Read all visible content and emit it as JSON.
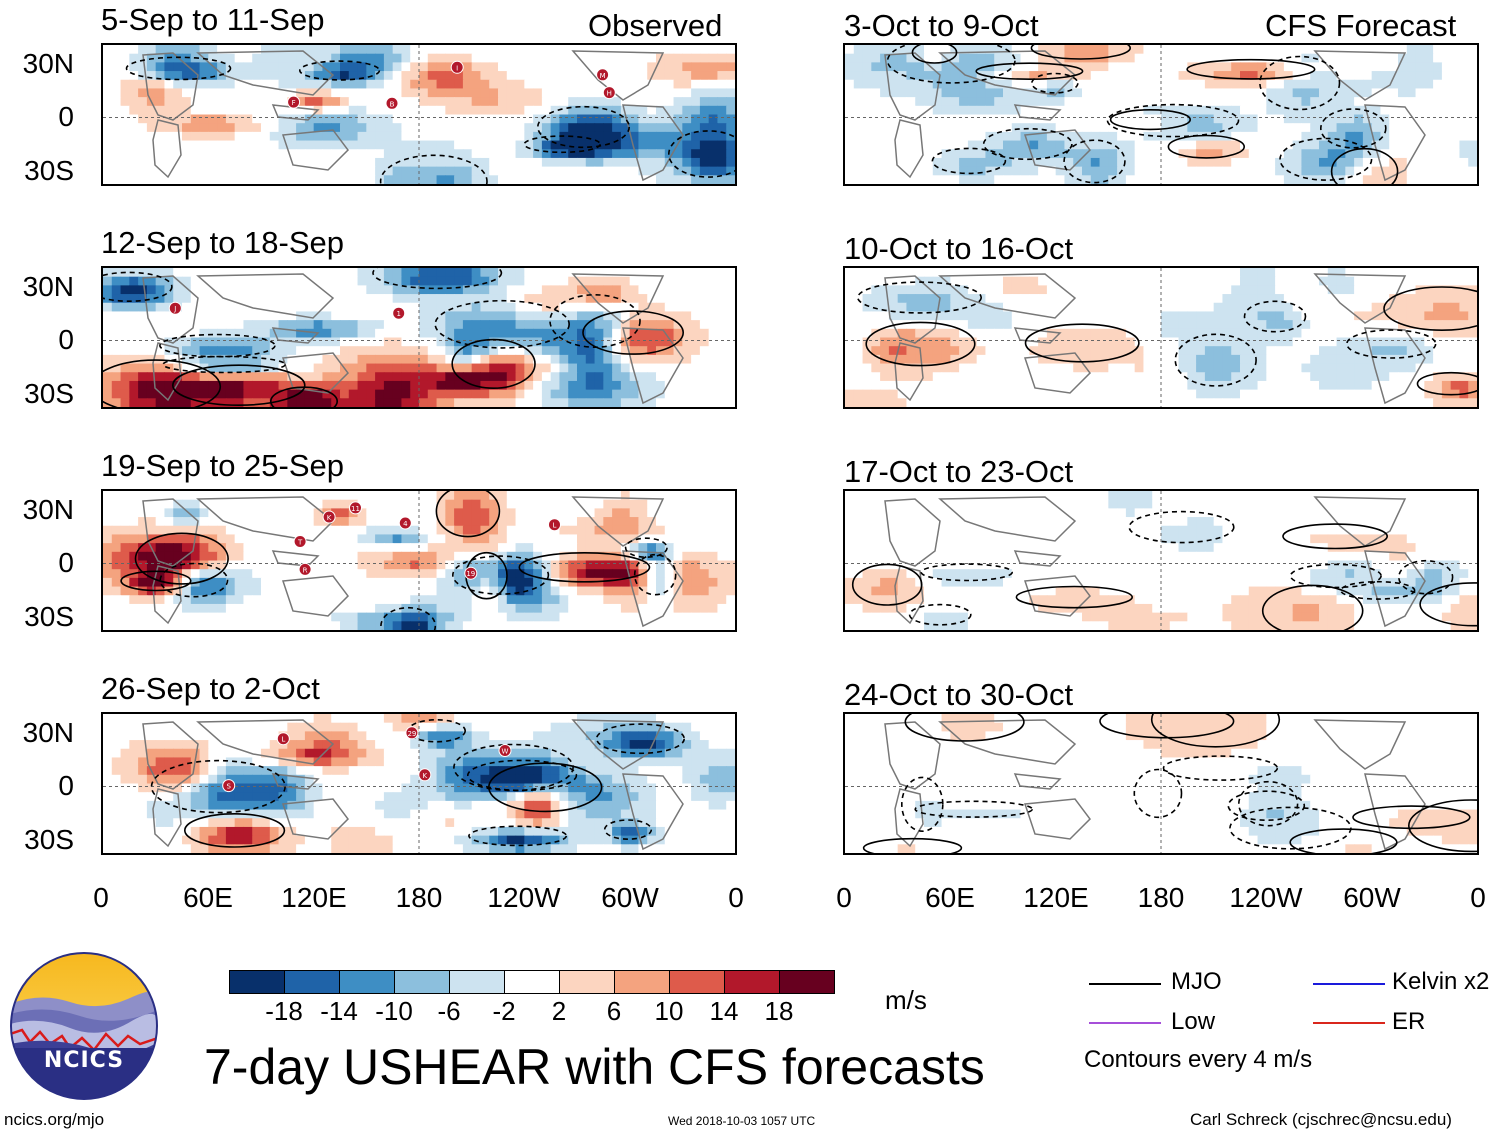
{
  "chart_data": {
    "type": "heatmap",
    "title": "7-day USHEAR with CFS forecasts",
    "variable": "USHEAR",
    "units": "m/s",
    "observed_label": "Observed",
    "forecast_label": "CFS Forecast",
    "x_ticks": [
      "0",
      "60E",
      "120E",
      "180",
      "120W",
      "60W",
      "0"
    ],
    "y_ticks": [
      "30N",
      "0",
      "30S"
    ],
    "colorbar_ticks": [
      "-18",
      "-14",
      "-10",
      "-6",
      "-2",
      "2",
      "6",
      "10",
      "14",
      "18"
    ],
    "colorbar_colors": [
      "#08306b",
      "#1f63a8",
      "#3e8ec4",
      "#8cbfdd",
      "#cde3f0",
      "#ffffff",
      "#fcd5c0",
      "#f4a37f",
      "#de5b4b",
      "#b2182b",
      "#67001f"
    ],
    "contour_note": "Contours every 4 m/s",
    "legend": [
      {
        "label": "MJO",
        "color": "#000000"
      },
      {
        "label": "Kelvin x2",
        "color": "#1a1adb"
      },
      {
        "label": "Low",
        "color": "#a64fd9"
      },
      {
        "label": "ER",
        "color": "#d9261c"
      }
    ],
    "observed_panels": [
      {
        "period": "5-Sep to 11-Sep",
        "storms": [
          "B",
          "M",
          "F",
          "I",
          "H"
        ]
      },
      {
        "period": "12-Sep to 18-Sep",
        "storms": [
          "1",
          "J"
        ]
      },
      {
        "period": "19-Sep to 25-Sep",
        "storms": [
          "4",
          "T",
          "19",
          "R",
          "11",
          "L",
          "K"
        ]
      },
      {
        "period": "26-Sep to 2-Oct",
        "storms": [
          "29",
          "K",
          "L",
          "W",
          "S"
        ]
      }
    ],
    "forecast_panels": [
      {
        "period": "3-Oct to 9-Oct"
      },
      {
        "period": "10-Oct to 16-Oct"
      },
      {
        "period": "17-Oct to 23-Oct"
      },
      {
        "period": "24-Oct to 30-Oct"
      }
    ]
  },
  "logo": {
    "text": "NCICS"
  },
  "footer": {
    "url": "ncics.org/mjo",
    "timestamp": "Wed 2018-10-03 1057 UTC",
    "author": "Carl Schreck (cjschrec@ncsu.edu)"
  }
}
